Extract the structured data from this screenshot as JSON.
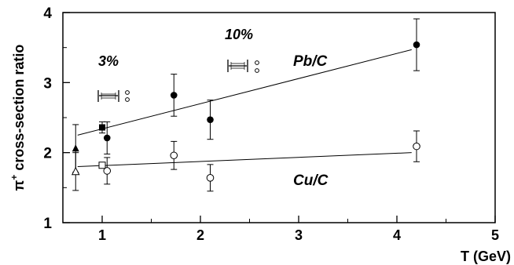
{
  "chart_data": {
    "type": "scatter",
    "title": "",
    "xlabel": "T (GeV)",
    "ylabel": "cross-section ratio",
    "ylabel_particle": "π",
    "ylabel_superscript": "+",
    "xlim": [
      0.6,
      5.0
    ],
    "ylim": [
      1.0,
      4.0
    ],
    "x_ticks": [
      "1",
      "2",
      "3",
      "4",
      "5"
    ],
    "y_ticks": [
      "1",
      "2",
      "3",
      "4"
    ],
    "grid": false,
    "series": [
      {
        "name": "Pb/C",
        "marker": "filled-circle",
        "points": [
          {
            "x": 1.05,
            "y": 2.21,
            "err": 0.23
          },
          {
            "x": 1.73,
            "y": 2.82,
            "err": 0.3
          },
          {
            "x": 2.1,
            "y": 2.47,
            "err": 0.28
          },
          {
            "x": 4.2,
            "y": 3.54,
            "err": 0.37
          }
        ],
        "fit": {
          "x": [
            0.75,
            4.15
          ],
          "y": [
            2.25,
            3.47
          ]
        }
      },
      {
        "name": "Cu/C",
        "marker": "open-circle",
        "points": [
          {
            "x": 1.05,
            "y": 1.74,
            "err": 0.19
          },
          {
            "x": 1.73,
            "y": 1.96,
            "err": 0.2
          },
          {
            "x": 2.1,
            "y": 1.64,
            "err": 0.19
          },
          {
            "x": 4.2,
            "y": 2.09,
            "err": 0.22
          }
        ],
        "fit": {
          "x": [
            0.75,
            4.15
          ],
          "y": [
            1.8,
            2.0
          ]
        }
      },
      {
        "name": "",
        "marker": "filled-square",
        "points": [
          {
            "x": 1.0,
            "y": 2.36,
            "err": 0.08
          }
        ]
      },
      {
        "name": "",
        "marker": "open-square",
        "points": [
          {
            "x": 1.0,
            "y": 1.82,
            "err": 0.0
          }
        ]
      },
      {
        "name": "",
        "marker": "filled-triangle",
        "points": [
          {
            "x": 0.73,
            "y": 2.06,
            "err": 0.34
          }
        ]
      },
      {
        "name": "",
        "marker": "open-triangle",
        "points": [
          {
            "x": 0.73,
            "y": 1.73,
            "err": 0.27
          }
        ]
      }
    ],
    "annotations": {
      "pb_label": "Pb/C",
      "cu_label": "Cu/C",
      "syst_3": "3%",
      "syst_10": "10%"
    }
  }
}
